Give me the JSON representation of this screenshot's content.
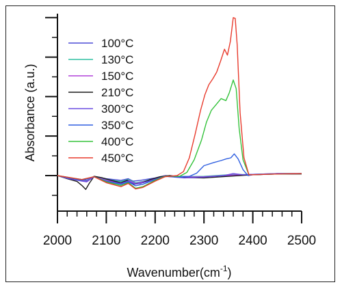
{
  "chart_data": {
    "type": "line",
    "title": "",
    "xlabel": "Wavenumber(cm",
    "xlabel_sup": "-1",
    "xlabel_close": ")",
    "ylabel": "Absorbance (a.u.)",
    "xlim": [
      2000,
      2500
    ],
    "ylim": [
      -0.9,
      4.1
    ],
    "x_ticks": [
      "2000",
      "2100",
      "2200",
      "2300",
      "2400",
      "2500"
    ],
    "y_ticks_shown_as_labels": false,
    "legend_position": "top-left",
    "grid": false,
    "series": [
      {
        "name": "100°C",
        "color": "#4b4bd6",
        "points": [
          [
            2000,
            0.0
          ],
          [
            2020,
            -0.05
          ],
          [
            2050,
            -0.1
          ],
          [
            2060,
            -0.12
          ],
          [
            2075,
            -0.02
          ],
          [
            2100,
            -0.08
          ],
          [
            2130,
            -0.12
          ],
          [
            2145,
            -0.08
          ],
          [
            2155,
            -0.14
          ],
          [
            2170,
            -0.12
          ],
          [
            2200,
            -0.06
          ],
          [
            2220,
            0.0
          ],
          [
            2250,
            -0.02
          ],
          [
            2300,
            -0.03
          ],
          [
            2350,
            0.0
          ],
          [
            2400,
            0.02
          ],
          [
            2450,
            0.05
          ],
          [
            2500,
            0.05
          ]
        ]
      },
      {
        "name": "130°C",
        "color": "#2ebfa0",
        "points": [
          [
            2000,
            0.0
          ],
          [
            2020,
            -0.06
          ],
          [
            2050,
            -0.12
          ],
          [
            2060,
            -0.14
          ],
          [
            2075,
            -0.02
          ],
          [
            2100,
            -0.1
          ],
          [
            2130,
            -0.15
          ],
          [
            2145,
            -0.1
          ],
          [
            2160,
            -0.18
          ],
          [
            2175,
            -0.15
          ],
          [
            2200,
            -0.07
          ],
          [
            2220,
            0.0
          ],
          [
            2260,
            -0.03
          ],
          [
            2300,
            -0.02
          ],
          [
            2350,
            0.02
          ],
          [
            2400,
            0.03
          ],
          [
            2450,
            0.05
          ],
          [
            2500,
            0.05
          ]
        ]
      },
      {
        "name": "150°C",
        "color": "#b040d8",
        "points": [
          [
            2000,
            0.0
          ],
          [
            2020,
            -0.06
          ],
          [
            2050,
            -0.13
          ],
          [
            2060,
            -0.15
          ],
          [
            2075,
            -0.02
          ],
          [
            2100,
            -0.12
          ],
          [
            2130,
            -0.18
          ],
          [
            2145,
            -0.12
          ],
          [
            2160,
            -0.2
          ],
          [
            2175,
            -0.16
          ],
          [
            2200,
            -0.08
          ],
          [
            2220,
            0.0
          ],
          [
            2260,
            -0.04
          ],
          [
            2300,
            -0.03
          ],
          [
            2350,
            0.01
          ],
          [
            2400,
            0.03
          ],
          [
            2450,
            0.05
          ],
          [
            2500,
            0.05
          ]
        ]
      },
      {
        "name": "210°C",
        "color": "#1a1a1a",
        "points": [
          [
            2000,
            0.0
          ],
          [
            2020,
            -0.08
          ],
          [
            2040,
            -0.15
          ],
          [
            2050,
            -0.25
          ],
          [
            2058,
            -0.35
          ],
          [
            2065,
            -0.2
          ],
          [
            2075,
            -0.02
          ],
          [
            2090,
            -0.05
          ],
          [
            2110,
            -0.12
          ],
          [
            2130,
            -0.18
          ],
          [
            2143,
            -0.12
          ],
          [
            2155,
            -0.22
          ],
          [
            2170,
            -0.2
          ],
          [
            2190,
            -0.1
          ],
          [
            2210,
            -0.03
          ],
          [
            2230,
            0.0
          ],
          [
            2260,
            -0.05
          ],
          [
            2300,
            -0.06
          ],
          [
            2350,
            -0.02
          ],
          [
            2400,
            0.02
          ],
          [
            2450,
            0.04
          ],
          [
            2500,
            0.04
          ]
        ]
      },
      {
        "name": "300°C",
        "color": "#6a4be0",
        "points": [
          [
            2000,
            0.0
          ],
          [
            2020,
            -0.07
          ],
          [
            2050,
            -0.14
          ],
          [
            2060,
            -0.16
          ],
          [
            2075,
            -0.03
          ],
          [
            2100,
            -0.14
          ],
          [
            2130,
            -0.2
          ],
          [
            2145,
            -0.14
          ],
          [
            2160,
            -0.22
          ],
          [
            2175,
            -0.18
          ],
          [
            2200,
            -0.1
          ],
          [
            2220,
            -0.02
          ],
          [
            2260,
            -0.06
          ],
          [
            2300,
            -0.04
          ],
          [
            2340,
            0.0
          ],
          [
            2360,
            0.05
          ],
          [
            2380,
            0.02
          ],
          [
            2400,
            0.03
          ],
          [
            2450,
            0.05
          ],
          [
            2500,
            0.05
          ]
        ]
      },
      {
        "name": "350°C",
        "color": "#2f5fe0",
        "points": [
          [
            2000,
            0.0
          ],
          [
            2020,
            -0.05
          ],
          [
            2050,
            -0.12
          ],
          [
            2075,
            -0.03
          ],
          [
            2100,
            -0.15
          ],
          [
            2130,
            -0.22
          ],
          [
            2145,
            -0.16
          ],
          [
            2160,
            -0.26
          ],
          [
            2175,
            -0.22
          ],
          [
            2200,
            -0.1
          ],
          [
            2220,
            -0.02
          ],
          [
            2250,
            -0.04
          ],
          [
            2270,
            -0.02
          ],
          [
            2285,
            0.06
          ],
          [
            2300,
            0.25
          ],
          [
            2320,
            0.33
          ],
          [
            2335,
            0.38
          ],
          [
            2345,
            0.42
          ],
          [
            2355,
            0.45
          ],
          [
            2362,
            0.55
          ],
          [
            2370,
            0.42
          ],
          [
            2380,
            0.15
          ],
          [
            2390,
            0.0
          ],
          [
            2400,
            0.02
          ],
          [
            2450,
            0.04
          ],
          [
            2500,
            0.05
          ]
        ]
      },
      {
        "name": "400°C",
        "color": "#33c23a",
        "points": [
          [
            2000,
            0.0
          ],
          [
            2020,
            -0.04
          ],
          [
            2050,
            -0.1
          ],
          [
            2075,
            -0.03
          ],
          [
            2100,
            -0.16
          ],
          [
            2130,
            -0.25
          ],
          [
            2145,
            -0.18
          ],
          [
            2160,
            -0.32
          ],
          [
            2175,
            -0.28
          ],
          [
            2200,
            -0.12
          ],
          [
            2220,
            -0.02
          ],
          [
            2250,
            -0.02
          ],
          [
            2265,
            0.08
          ],
          [
            2280,
            0.4
          ],
          [
            2295,
            0.9
          ],
          [
            2305,
            1.35
          ],
          [
            2315,
            1.65
          ],
          [
            2325,
            1.8
          ],
          [
            2335,
            1.95
          ],
          [
            2345,
            1.9
          ],
          [
            2352,
            2.1
          ],
          [
            2360,
            2.42
          ],
          [
            2366,
            2.2
          ],
          [
            2372,
            1.2
          ],
          [
            2380,
            0.4
          ],
          [
            2392,
            0.02
          ],
          [
            2400,
            0.02
          ],
          [
            2450,
            0.04
          ],
          [
            2500,
            0.05
          ]
        ]
      },
      {
        "name": "450°C",
        "color": "#e83a2c",
        "points": [
          [
            2000,
            0.0
          ],
          [
            2020,
            -0.04
          ],
          [
            2050,
            -0.1
          ],
          [
            2075,
            -0.03
          ],
          [
            2100,
            -0.18
          ],
          [
            2130,
            -0.28
          ],
          [
            2145,
            -0.2
          ],
          [
            2160,
            -0.34
          ],
          [
            2175,
            -0.3
          ],
          [
            2200,
            -0.14
          ],
          [
            2220,
            -0.03
          ],
          [
            2245,
            0.0
          ],
          [
            2258,
            0.1
          ],
          [
            2270,
            0.45
          ],
          [
            2282,
            1.05
          ],
          [
            2293,
            1.65
          ],
          [
            2302,
            2.05
          ],
          [
            2310,
            2.3
          ],
          [
            2318,
            2.45
          ],
          [
            2326,
            2.62
          ],
          [
            2334,
            2.9
          ],
          [
            2342,
            3.2
          ],
          [
            2348,
            3.05
          ],
          [
            2354,
            3.4
          ],
          [
            2360,
            4.0
          ],
          [
            2364,
            3.98
          ],
          [
            2368,
            3.3
          ],
          [
            2374,
            1.6
          ],
          [
            2382,
            0.45
          ],
          [
            2392,
            0.02
          ],
          [
            2400,
            0.02
          ],
          [
            2450,
            0.04
          ],
          [
            2500,
            0.05
          ]
        ]
      }
    ]
  }
}
